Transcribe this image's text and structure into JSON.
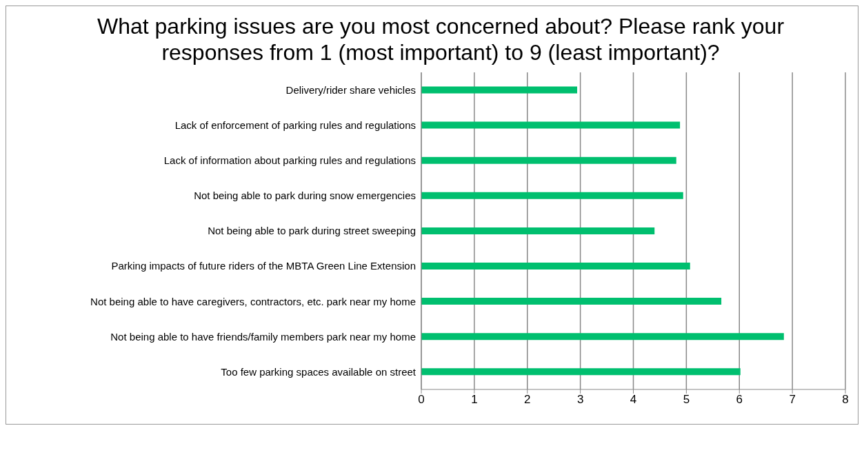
{
  "chart_data": {
    "type": "bar",
    "orientation": "horizontal",
    "title": "What parking issues are you most concerned about? Please rank your responses from 1 (most important) to 9 (least important)?",
    "categories": [
      "Delivery/rider share vehicles",
      "Lack of enforcement of parking rules and regulations",
      "Lack of information about parking rules and regulations",
      "Not being able to park during snow emergencies",
      "Not being able to park during street sweeping",
      "Parking impacts of future riders of the MBTA Green Line Extension",
      "Not being able to have caregivers, contractors, etc. park near my home",
      "Not being able to have friends/family members park near my home",
      "Too few parking spaces available on street"
    ],
    "values": [
      2.94,
      4.88,
      4.81,
      4.94,
      4.4,
      5.07,
      5.66,
      6.84,
      6.02
    ],
    "color": "#00bf6f",
    "xlim": [
      0,
      8
    ],
    "xticks": [
      0,
      1,
      2,
      3,
      4,
      5,
      6,
      7,
      8
    ],
    "grid": "x"
  }
}
